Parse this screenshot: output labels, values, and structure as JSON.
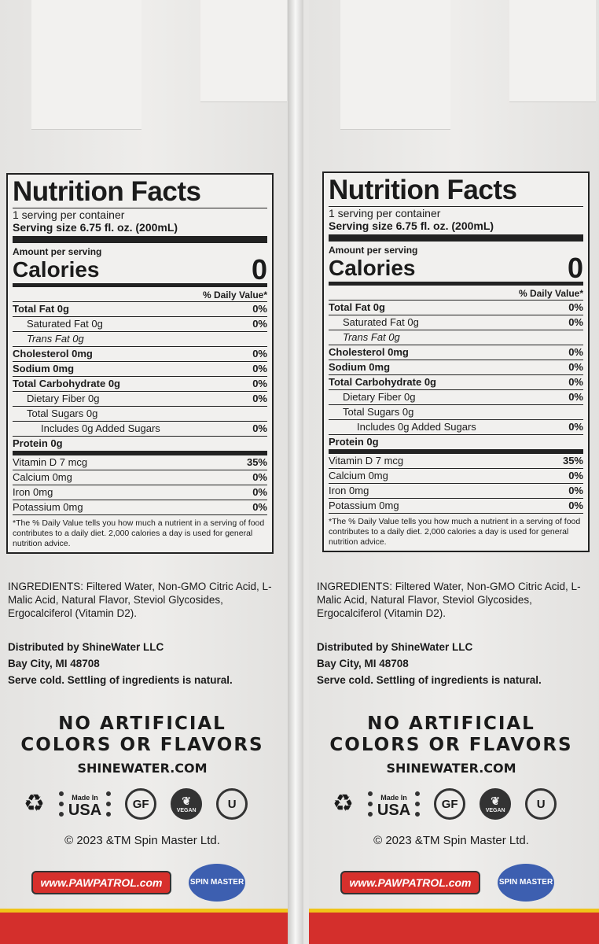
{
  "label": {
    "title": "Nutrition Facts",
    "servings": "1 serving per container",
    "serving_size": "Serving size 6.75 fl. oz. (200mL)",
    "amount_per_serving": "Amount per serving",
    "calories_label": "Calories",
    "calories_value": "0",
    "daily_value_header": "% Daily Value*",
    "rows": [
      {
        "name": "Total Fat 0g",
        "dv": "0%"
      },
      {
        "name": "Saturated Fat 0g",
        "dv": "0%"
      },
      {
        "name": "Trans Fat 0g",
        "dv": ""
      },
      {
        "name": "Cholesterol 0mg",
        "dv": "0%"
      },
      {
        "name": "Sodium 0mg",
        "dv": "0%"
      },
      {
        "name": "Total Carbohydrate 0g",
        "dv": "0%"
      },
      {
        "name": "Dietary Fiber 0g",
        "dv": "0%"
      },
      {
        "name": "Total Sugars 0g",
        "dv": ""
      },
      {
        "name": "Includes 0g Added Sugars",
        "dv": "0%"
      },
      {
        "name": "Protein 0g",
        "dv": ""
      },
      {
        "name": "Vitamin D 7 mcg",
        "dv": "35%"
      },
      {
        "name": "Calcium 0mg",
        "dv": "0%"
      },
      {
        "name": "Iron 0mg",
        "dv": "0%"
      },
      {
        "name": "Potassium 0mg",
        "dv": "0%"
      }
    ],
    "footnote": "*The % Daily Value tells you how much a nutrient in a serving of food contributes to a daily diet. 2,000 calories a day is used for general nutrition advice."
  },
  "ingredients": "INGREDIENTS: Filtered Water, Non-GMO Citric Acid, L-Malic Acid, Natural Flavor, Steviol Glycosides, Ergocalciferol (Vitamin D2).",
  "distributor": [
    "Distributed by ShineWater LLC",
    "Bay City, MI 48708",
    "Serve cold. Settling of ingredients is natural."
  ],
  "claim": [
    "NO ARTIFICIAL",
    "COLORS OR FLAVORS"
  ],
  "website": "SHINEWATER.COM",
  "badges": {
    "recycle": "recycle-icon",
    "made_in": "Made In",
    "usa": "USA",
    "gf": "GF",
    "vegan": "VEGAN",
    "kosher": "U"
  },
  "copyright": "© 2023 &TM Spin Master Ltd.",
  "pawpatrol": "www.PAWPATROL.com",
  "spinmaster": "SPIN MASTER",
  "colors": {
    "band": "#d42f2c",
    "stripe": "#f0c419",
    "logo_blue": "#3d5fb0"
  }
}
